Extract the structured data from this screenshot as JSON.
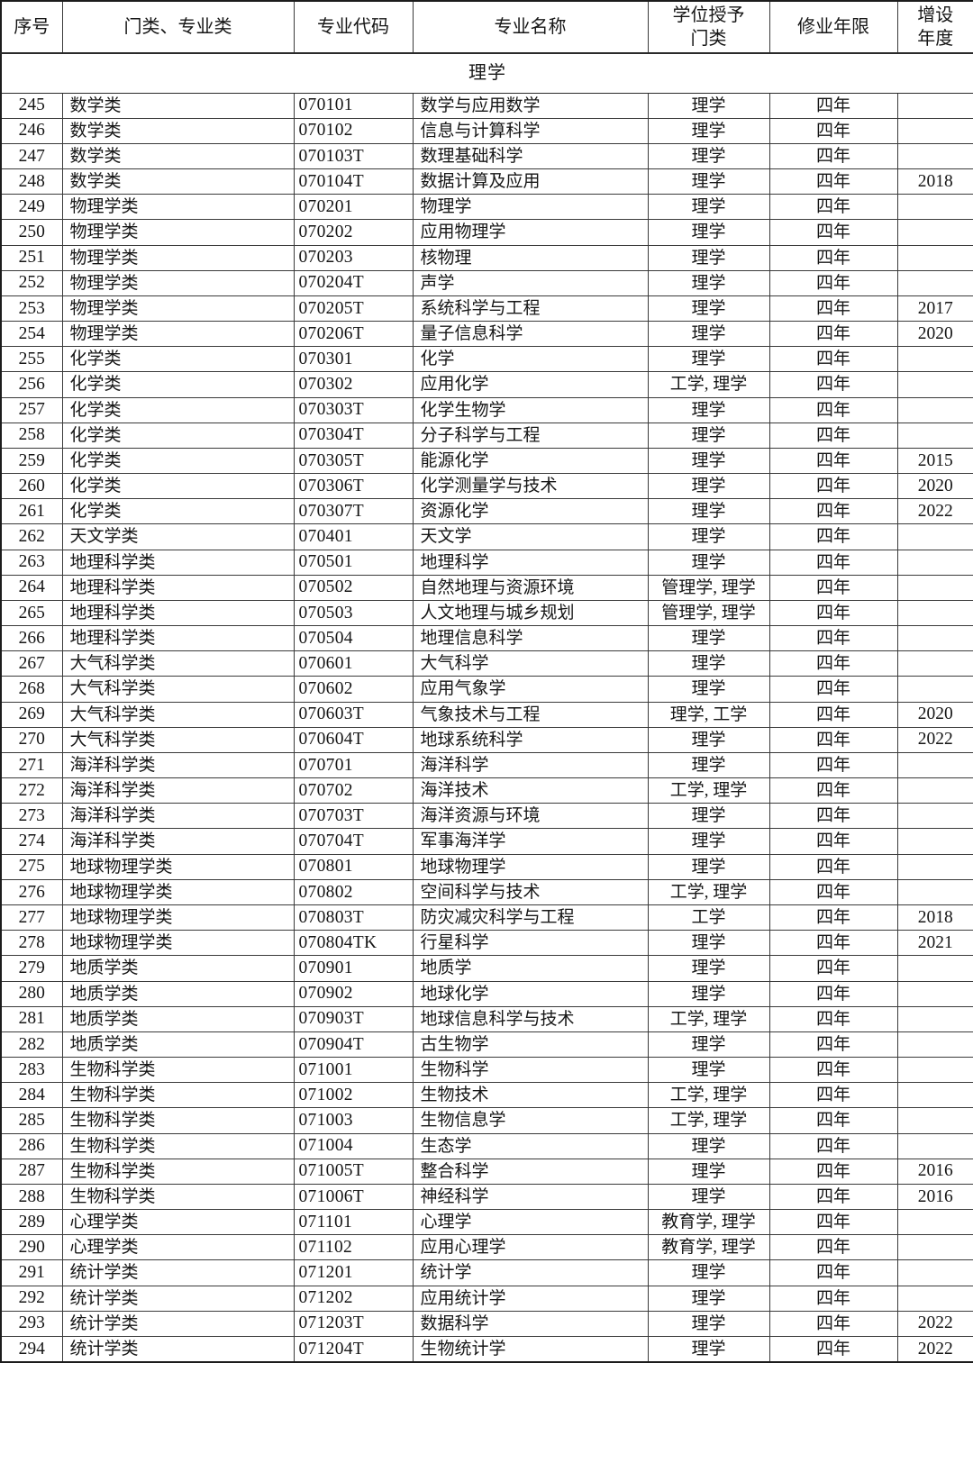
{
  "colors": {
    "background": "#ffffff",
    "text": "#161616",
    "border": "#3a3a3a"
  },
  "table": {
    "section_label": "理学",
    "headers": [
      "序号",
      "门类、专业类",
      "专业代码",
      "专业名称",
      "学位授予门类",
      "修业年限",
      "增设年度"
    ],
    "rows": [
      [
        "245",
        "数学类",
        "070101",
        "数学与应用数学",
        "理学",
        "四年",
        ""
      ],
      [
        "246",
        "数学类",
        "070102",
        "信息与计算科学",
        "理学",
        "四年",
        ""
      ],
      [
        "247",
        "数学类",
        "070103T",
        "数理基础科学",
        "理学",
        "四年",
        ""
      ],
      [
        "248",
        "数学类",
        "070104T",
        "数据计算及应用",
        "理学",
        "四年",
        "2018"
      ],
      [
        "249",
        "物理学类",
        "070201",
        "物理学",
        "理学",
        "四年",
        ""
      ],
      [
        "250",
        "物理学类",
        "070202",
        "应用物理学",
        "理学",
        "四年",
        ""
      ],
      [
        "251",
        "物理学类",
        "070203",
        "核物理",
        "理学",
        "四年",
        ""
      ],
      [
        "252",
        "物理学类",
        "070204T",
        "声学",
        "理学",
        "四年",
        ""
      ],
      [
        "253",
        "物理学类",
        "070205T",
        "系统科学与工程",
        "理学",
        "四年",
        "2017"
      ],
      [
        "254",
        "物理学类",
        "070206T",
        "量子信息科学",
        "理学",
        "四年",
        "2020"
      ],
      [
        "255",
        "化学类",
        "070301",
        "化学",
        "理学",
        "四年",
        ""
      ],
      [
        "256",
        "化学类",
        "070302",
        "应用化学",
        "工学, 理学",
        "四年",
        ""
      ],
      [
        "257",
        "化学类",
        "070303T",
        "化学生物学",
        "理学",
        "四年",
        ""
      ],
      [
        "258",
        "化学类",
        "070304T",
        "分子科学与工程",
        "理学",
        "四年",
        ""
      ],
      [
        "259",
        "化学类",
        "070305T",
        "能源化学",
        "理学",
        "四年",
        "2015"
      ],
      [
        "260",
        "化学类",
        "070306T",
        "化学测量学与技术",
        "理学",
        "四年",
        "2020"
      ],
      [
        "261",
        "化学类",
        "070307T",
        "资源化学",
        "理学",
        "四年",
        "2022"
      ],
      [
        "262",
        "天文学类",
        "070401",
        "天文学",
        "理学",
        "四年",
        ""
      ],
      [
        "263",
        "地理科学类",
        "070501",
        "地理科学",
        "理学",
        "四年",
        ""
      ],
      [
        "264",
        "地理科学类",
        "070502",
        "自然地理与资源环境",
        "管理学, 理学",
        "四年",
        ""
      ],
      [
        "265",
        "地理科学类",
        "070503",
        "人文地理与城乡规划",
        "管理学, 理学",
        "四年",
        ""
      ],
      [
        "266",
        "地理科学类",
        "070504",
        "地理信息科学",
        "理学",
        "四年",
        ""
      ],
      [
        "267",
        "大气科学类",
        "070601",
        "大气科学",
        "理学",
        "四年",
        ""
      ],
      [
        "268",
        "大气科学类",
        "070602",
        "应用气象学",
        "理学",
        "四年",
        ""
      ],
      [
        "269",
        "大气科学类",
        "070603T",
        "气象技术与工程",
        "理学, 工学",
        "四年",
        "2020"
      ],
      [
        "270",
        "大气科学类",
        "070604T",
        "地球系统科学",
        "理学",
        "四年",
        "2022"
      ],
      [
        "271",
        "海洋科学类",
        "070701",
        "海洋科学",
        "理学",
        "四年",
        ""
      ],
      [
        "272",
        "海洋科学类",
        "070702",
        "海洋技术",
        "工学, 理学",
        "四年",
        ""
      ],
      [
        "273",
        "海洋科学类",
        "070703T",
        "海洋资源与环境",
        "理学",
        "四年",
        ""
      ],
      [
        "274",
        "海洋科学类",
        "070704T",
        "军事海洋学",
        "理学",
        "四年",
        ""
      ],
      [
        "275",
        "地球物理学类",
        "070801",
        "地球物理学",
        "理学",
        "四年",
        ""
      ],
      [
        "276",
        "地球物理学类",
        "070802",
        "空间科学与技术",
        "工学, 理学",
        "四年",
        ""
      ],
      [
        "277",
        "地球物理学类",
        "070803T",
        "防灾减灾科学与工程",
        "工学",
        "四年",
        "2018"
      ],
      [
        "278",
        "地球物理学类",
        "070804TK",
        "行星科学",
        "理学",
        "四年",
        "2021"
      ],
      [
        "279",
        "地质学类",
        "070901",
        "地质学",
        "理学",
        "四年",
        ""
      ],
      [
        "280",
        "地质学类",
        "070902",
        "地球化学",
        "理学",
        "四年",
        ""
      ],
      [
        "281",
        "地质学类",
        "070903T",
        "地球信息科学与技术",
        "工学, 理学",
        "四年",
        ""
      ],
      [
        "282",
        "地质学类",
        "070904T",
        "古生物学",
        "理学",
        "四年",
        ""
      ],
      [
        "283",
        "生物科学类",
        "071001",
        "生物科学",
        "理学",
        "四年",
        ""
      ],
      [
        "284",
        "生物科学类",
        "071002",
        "生物技术",
        "工学, 理学",
        "四年",
        ""
      ],
      [
        "285",
        "生物科学类",
        "071003",
        "生物信息学",
        "工学, 理学",
        "四年",
        ""
      ],
      [
        "286",
        "生物科学类",
        "071004",
        "生态学",
        "理学",
        "四年",
        ""
      ],
      [
        "287",
        "生物科学类",
        "071005T",
        "整合科学",
        "理学",
        "四年",
        "2016"
      ],
      [
        "288",
        "生物科学类",
        "071006T",
        "神经科学",
        "理学",
        "四年",
        "2016"
      ],
      [
        "289",
        "心理学类",
        "071101",
        "心理学",
        "教育学, 理学",
        "四年",
        ""
      ],
      [
        "290",
        "心理学类",
        "071102",
        "应用心理学",
        "教育学, 理学",
        "四年",
        ""
      ],
      [
        "291",
        "统计学类",
        "071201",
        "统计学",
        "理学",
        "四年",
        ""
      ],
      [
        "292",
        "统计学类",
        "071202",
        "应用统计学",
        "理学",
        "四年",
        ""
      ],
      [
        "293",
        "统计学类",
        "071203T",
        "数据科学",
        "理学",
        "四年",
        "2022"
      ],
      [
        "294",
        "统计学类",
        "071204T",
        "生物统计学",
        "理学",
        "四年",
        "2022"
      ]
    ]
  }
}
